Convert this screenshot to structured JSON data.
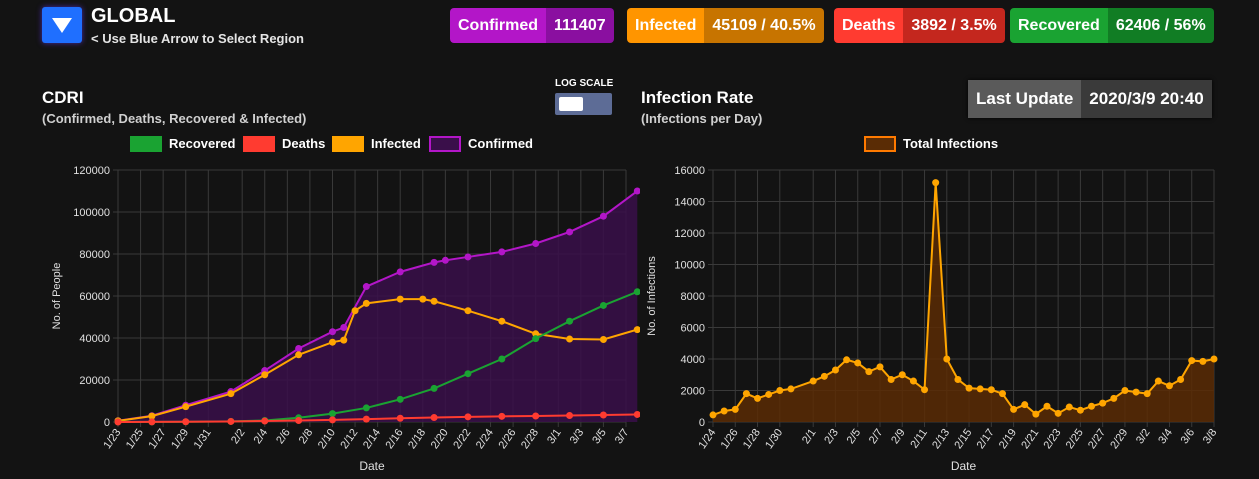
{
  "header": {
    "region": "GLOBAL",
    "hint": "< Use Blue Arrow to Select Region",
    "stats": [
      {
        "label": "Confirmed",
        "value": "111407",
        "lbl_color": "#b316c8",
        "val_color": "#8a0fa0",
        "left": 450
      },
      {
        "label": "Infected",
        "value": "45109 / 40.5%",
        "lbl_color": "#ff9500",
        "val_color": "#c77400",
        "left": 627
      },
      {
        "label": "Deaths",
        "value": "3892 / 3.5%",
        "lbl_color": "#ff3b30",
        "val_color": "#c4271e",
        "left": 834
      },
      {
        "label": "Recovered",
        "value": "62406 / 56%",
        "lbl_color": "#1aa332",
        "val_color": "#117d24",
        "left": 1010
      }
    ]
  },
  "log_scale_label": "LOG SCALE",
  "last_update": {
    "label": "Last Update",
    "value": "2020/3/9 20:40"
  },
  "charts": {
    "cdri": {
      "title": "CDRI",
      "subtitle": "(Confirmed, Deaths, Recovered & Infected)"
    },
    "rate": {
      "title": "Infection Rate",
      "subtitle": "(Infections per Day)"
    }
  },
  "chart_data": [
    {
      "type": "line",
      "title": "CDRI",
      "subtitle": "(Confirmed, Deaths, Recovered & Infected)",
      "xlabel": "Date",
      "ylabel": "No. of People",
      "ylim": [
        0,
        120000
      ],
      "yticks": [
        0,
        20000,
        40000,
        60000,
        80000,
        100000,
        120000
      ],
      "xtick_labels": [
        "1/23",
        "1/25",
        "1/27",
        "1/29",
        "1/31",
        "2/2",
        "2/4",
        "2/6",
        "2/8",
        "2/10",
        "2/12",
        "2/14",
        "2/16",
        "2/18",
        "2/20",
        "2/22",
        "2/24",
        "2/26",
        "2/28",
        "3/1",
        "3/3",
        "3/5",
        "3/7"
      ],
      "legend": [
        "Recovered",
        "Deaths",
        "Infected",
        "Confirmed"
      ],
      "series": [
        {
          "name": "Confirmed",
          "color": "#b316c8",
          "fill": "#3a0f4a",
          "x": [
            "1/23",
            "1/26",
            "1/29",
            "2/1",
            "2/4",
            "2/7",
            "2/10",
            "2/11",
            "2/13",
            "2/16",
            "2/19",
            "2/20",
            "2/22",
            "2/25",
            "2/28",
            "3/2",
            "3/5",
            "3/8"
          ],
          "values": [
            600,
            3000,
            8000,
            14500,
            24500,
            35000,
            43000,
            45000,
            64500,
            71500,
            76000,
            77000,
            78600,
            81000,
            85000,
            90500,
            98000,
            110000
          ]
        },
        {
          "name": "Infected",
          "color": "#ffa500",
          "x": [
            "1/23",
            "1/26",
            "1/29",
            "2/1",
            "2/4",
            "2/7",
            "2/10",
            "2/11",
            "2/12",
            "2/13",
            "2/16",
            "2/18",
            "2/19",
            "2/22",
            "2/25",
            "2/28",
            "3/2",
            "3/5",
            "3/8"
          ],
          "values": [
            550,
            2800,
            7300,
            13500,
            22500,
            32000,
            38000,
            39000,
            53000,
            56500,
            58500,
            58500,
            57500,
            53000,
            48000,
            42000,
            39500,
            39300,
            44000
          ]
        },
        {
          "name": "Recovered",
          "color": "#1aa332",
          "x": [
            "1/23",
            "1/26",
            "1/29",
            "2/1",
            "2/4",
            "2/7",
            "2/10",
            "2/13",
            "2/16",
            "2/19",
            "2/22",
            "2/25",
            "2/28",
            "3/2",
            "3/5",
            "3/8"
          ],
          "values": [
            30,
            60,
            130,
            280,
            700,
            2000,
            4000,
            6700,
            10800,
            16000,
            23000,
            30000,
            39700,
            48000,
            55500,
            62000
          ]
        },
        {
          "name": "Deaths",
          "color": "#ff3b30",
          "x": [
            "1/23",
            "1/26",
            "1/29",
            "2/1",
            "2/4",
            "2/7",
            "2/10",
            "2/13",
            "2/16",
            "2/19",
            "2/22",
            "2/25",
            "2/28",
            "3/2",
            "3/5",
            "3/8"
          ],
          "values": [
            17,
            56,
            130,
            260,
            490,
            720,
            1000,
            1380,
            1770,
            2120,
            2460,
            2700,
            2860,
            3110,
            3350,
            3600
          ]
        }
      ]
    },
    {
      "type": "area",
      "title": "Infection Rate",
      "subtitle": "(Infections per Day)",
      "xlabel": "Date",
      "ylabel": "No. of Infections",
      "ylim": [
        0,
        16000
      ],
      "yticks": [
        0,
        2000,
        4000,
        6000,
        8000,
        10000,
        12000,
        14000,
        16000
      ],
      "xtick_labels": [
        "1/24",
        "1/26",
        "1/28",
        "1/30",
        "2/1",
        "2/3",
        "2/5",
        "2/7",
        "2/9",
        "2/11",
        "2/13",
        "2/15",
        "2/17",
        "2/19",
        "2/21",
        "2/23",
        "2/25",
        "2/27",
        "2/29",
        "3/2",
        "3/4",
        "3/6",
        "3/8"
      ],
      "legend": [
        "Total Infections"
      ],
      "series": [
        {
          "name": "Total Infections",
          "color": "#ffa500",
          "fill": "#5a2c05",
          "x": [
            "1/24",
            "1/25",
            "1/26",
            "1/27",
            "1/28",
            "1/29",
            "1/30",
            "1/31",
            "2/1",
            "2/2",
            "2/3",
            "2/4",
            "2/5",
            "2/6",
            "2/7",
            "2/8",
            "2/9",
            "2/10",
            "2/11",
            "2/12",
            "2/13",
            "2/14",
            "2/15",
            "2/16",
            "2/17",
            "2/18",
            "2/19",
            "2/20",
            "2/21",
            "2/22",
            "2/23",
            "2/24",
            "2/25",
            "2/26",
            "2/27",
            "2/28",
            "2/29",
            "3/1",
            "3/2",
            "3/3",
            "3/4",
            "3/5",
            "3/6",
            "3/7",
            "3/8"
          ],
          "values": [
            450,
            700,
            800,
            1800,
            1500,
            1750,
            2000,
            2100,
            2600,
            2900,
            3300,
            3950,
            3750,
            3200,
            3500,
            2700,
            3000,
            2600,
            2050,
            15200,
            4000,
            2700,
            2150,
            2100,
            2050,
            1800,
            800,
            1100,
            500,
            1000,
            550,
            950,
            750,
            1000,
            1200,
            1500,
            2000,
            1900,
            1800,
            2600,
            2300,
            2700,
            3900,
            3850,
            4000
          ]
        }
      ]
    }
  ]
}
